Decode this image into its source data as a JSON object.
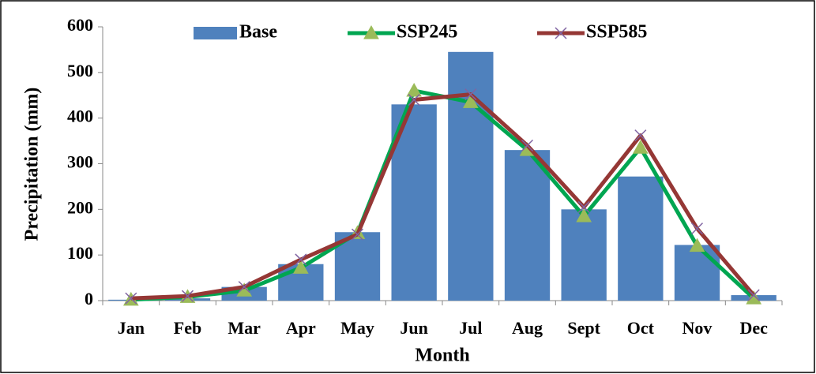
{
  "chart_data": {
    "type": "bar-line",
    "x_label": "Month",
    "y_label": "Precipitation (mm)",
    "categories": [
      "Jan",
      "Feb",
      "Mar",
      "Apr",
      "May",
      "Jun",
      "Jul",
      "Aug",
      "Sept",
      "Oct",
      "Nov",
      "Dec"
    ],
    "series": [
      {
        "name": "Base",
        "type": "bar",
        "color": "#4f81bd",
        "values": [
          2,
          5,
          30,
          80,
          150,
          430,
          545,
          330,
          200,
          272,
          122,
          12
        ]
      },
      {
        "name": "SSP245",
        "type": "line",
        "color": "#00a651",
        "marker": "triangle",
        "marker_color": "#9bbb59",
        "values": [
          2,
          8,
          22,
          72,
          148,
          460,
          435,
          330,
          185,
          335,
          120,
          5
        ]
      },
      {
        "name": "SSP585",
        "type": "line",
        "color": "#953735",
        "marker": "x",
        "marker_color": "#8064a2",
        "values": [
          5,
          10,
          30,
          90,
          145,
          440,
          452,
          340,
          205,
          362,
          158,
          12
        ]
      }
    ],
    "ylim": [
      0,
      600
    ],
    "yticks": [
      0,
      100,
      200,
      300,
      400,
      500,
      600
    ],
    "grid": false,
    "legend": "top"
  }
}
